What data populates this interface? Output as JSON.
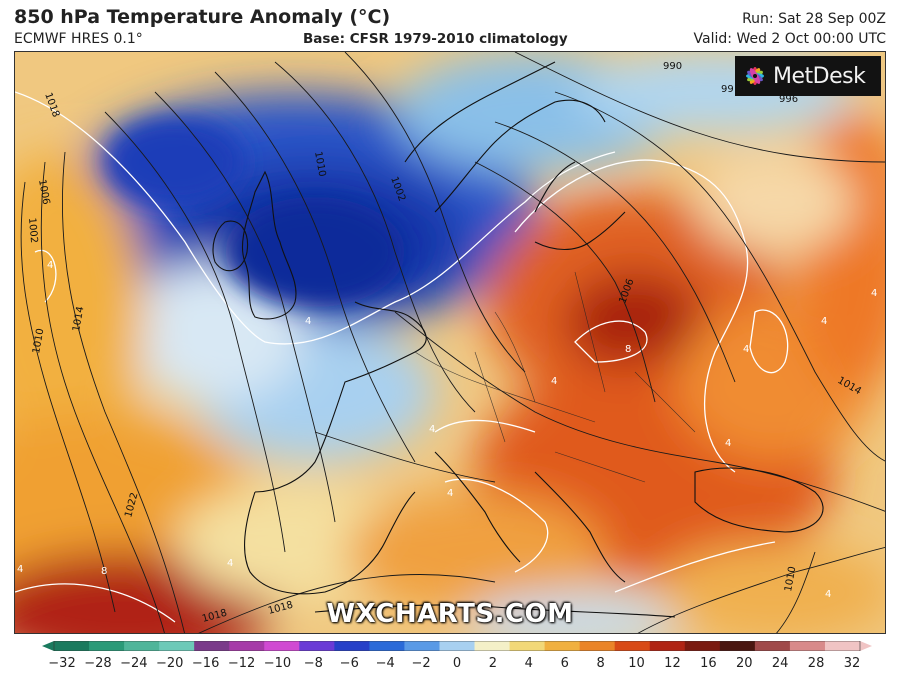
{
  "header": {
    "title": "850 hPa Temperature Anomaly (°C)",
    "model": "ECMWF HRES 0.1°",
    "base": "Base: CFSR 1979-2010 climatology",
    "run": "Run: Sat 28 Sep 00Z",
    "valid": "Valid: Wed 2 Oct 00:00 UTC"
  },
  "branding": {
    "logo_text": "MetDesk",
    "watermark": "WXCHARTS.COM"
  },
  "isobar_labels": [
    "1018",
    "1006",
    "1002",
    "1010",
    "1014",
    "1010",
    "1022",
    "1010",
    "1002",
    "990",
    "99",
    "996",
    "1006",
    "1014",
    "1010",
    "1018",
    "1018"
  ],
  "anomaly_labels": [
    "4",
    "4",
    "4",
    "8",
    "4",
    "4",
    "4",
    "4",
    "4",
    "4",
    "4",
    "4",
    "4",
    "4",
    "8"
  ],
  "colorbar": {
    "ticks": [
      "−32",
      "−28",
      "−24",
      "−20",
      "−16",
      "−12",
      "−10",
      "−8",
      "−6",
      "−4",
      "−2",
      "0",
      "2",
      "4",
      "6",
      "8",
      "10",
      "12",
      "16",
      "20",
      "24",
      "28",
      "32"
    ],
    "colors": [
      "#1a7a5e",
      "#2a9a78",
      "#4fb59a",
      "#6dc9b8",
      "#7a3a8a",
      "#a63aa8",
      "#d04ad2",
      "#6a3ad6",
      "#2640c8",
      "#2a6ad8",
      "#5a9ae6",
      "#a8d0f0",
      "#f4f0c8",
      "#f2d878",
      "#f0b040",
      "#ea8428",
      "#d84a16",
      "#b02414",
      "#7a1a10",
      "#4a1610",
      "#a04a4a",
      "#d88a8a",
      "#f0c4c4"
    ]
  },
  "map": {
    "land_border_color": "#111111",
    "isobar_color": "#1a1a1a",
    "anomaly_contour_color": "#ffffff"
  }
}
